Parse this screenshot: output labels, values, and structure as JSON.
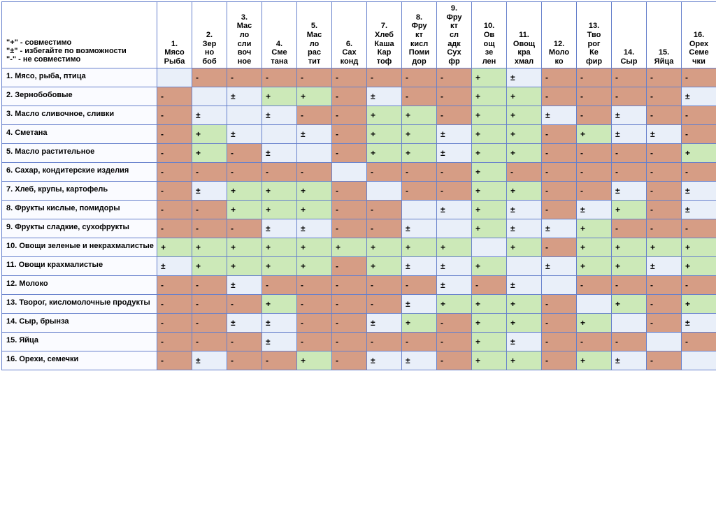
{
  "legend": {
    "plus": "\"+\" - совместимо",
    "pm": "\"±\" - избегайте по возможности",
    "minus": "\"-\" - не совместимо"
  },
  "colors": {
    "plus": "#cce9b8",
    "minus": "#d69d85",
    "pm": "#e9eff9",
    "diag": "#e9eff9",
    "border": "#6680cc",
    "textMinus": "#333333",
    "textPlus": "#333333",
    "textPm": "#333333"
  },
  "symbols": {
    "plus": "+",
    "minus": "-",
    "pm": "±",
    "diag": ""
  },
  "columns": [
    "1.\nМясо\nРыба",
    "2.\nЗер\nно\nбоб",
    "3.\nМас\nло\nсли\nвоч\nное",
    "4.\nСме\nтана",
    "5.\nМас\nло\nрас\nтит",
    "6.\nСах\nконд",
    "7.\nХлеб\nКаша\nКар\nтоф",
    "8.\nФру\nкт\nкисл\nПоми\nдор",
    "9.\nФру\nкт\nсл\nадк\nСух\nфр",
    "10.\nОв\nощ\nзе\nлен",
    "11.\nОвощ\nкра\nхмал",
    "12.\nМоло\nко",
    "13.\nТво\nрог\nКе\nфир",
    "14.\nСыр",
    "15.\nЯйца",
    "16.\nОрех\nСеме\nчки"
  ],
  "rows": [
    {
      "label": "1. Мясо, рыба, птица",
      "c": [
        "d",
        "-",
        "-",
        "-",
        "-",
        "-",
        "-",
        "-",
        "-",
        "+",
        "±",
        "-",
        "-",
        "-",
        "-",
        "-"
      ]
    },
    {
      "label": "2. Зернобобовые",
      "c": [
        "-",
        "d",
        "±",
        "+",
        "+",
        "-",
        "±",
        "-",
        "-",
        "+",
        "+",
        "-",
        "-",
        "-",
        "-",
        "±"
      ]
    },
    {
      "label": "3. Масло сливочное, сливки",
      "c": [
        "-",
        "±",
        "d",
        "±",
        "-",
        "-",
        "+",
        "+",
        "-",
        "+",
        "+",
        "±",
        "-",
        "±",
        "-",
        "-"
      ]
    },
    {
      "label": "4. Сметана",
      "c": [
        "-",
        "+",
        "±",
        "d",
        "±",
        "-",
        "+",
        "+",
        "±",
        "+",
        "+",
        "-",
        "+",
        "±",
        "±",
        "-"
      ]
    },
    {
      "label": "5. Масло растительное",
      "c": [
        "-",
        "+",
        "-",
        "±",
        "d",
        "-",
        "+",
        "+",
        "±",
        "+",
        "+",
        "-",
        "-",
        "-",
        "-",
        "+"
      ]
    },
    {
      "label": "6. Сахар, кондитерские изделия",
      "c": [
        "-",
        "-",
        "-",
        "-",
        "-",
        "d",
        "-",
        "-",
        "-",
        "+",
        "-",
        "-",
        "-",
        "-",
        "-",
        "-"
      ]
    },
    {
      "label": "7. Хлеб, крупы, картофель",
      "c": [
        "-",
        "±",
        "+",
        "+",
        "+",
        "-",
        "d",
        "-",
        "-",
        "+",
        "+",
        "-",
        "-",
        "±",
        "-",
        "±"
      ]
    },
    {
      "label": "8. Фрукты кислые, помидоры",
      "c": [
        "-",
        "-",
        "+",
        "+",
        "+",
        "-",
        "-",
        "d",
        "±",
        "+",
        "±",
        "-",
        "±",
        "+",
        "-",
        "±"
      ]
    },
    {
      "label": "9. Фрукты сладкие, сухофрукты",
      "c": [
        "-",
        "-",
        "-",
        "±",
        "±",
        "-",
        "-",
        "±",
        "d",
        "+",
        "±",
        "±",
        "+",
        "-",
        "-",
        "-"
      ]
    },
    {
      "label": "10. Овощи зеленые и некрахмалистые",
      "c": [
        "+",
        "+",
        "+",
        "+",
        "+",
        "+",
        "+",
        "+",
        "+",
        "d",
        "+",
        "-",
        "+",
        "+",
        "+",
        "+"
      ]
    },
    {
      "label": "11. Овощи крахмалистые",
      "c": [
        "±",
        "+",
        "+",
        "+",
        "+",
        "-",
        "+",
        "±",
        "±",
        "+",
        "d",
        "±",
        "+",
        "+",
        "±",
        "+"
      ]
    },
    {
      "label": "12. Молоко",
      "c": [
        "-",
        "-",
        "±",
        "-",
        "-",
        "-",
        "-",
        "-",
        "±",
        "-",
        "±",
        "d",
        "-",
        "-",
        "-",
        "-"
      ]
    },
    {
      "label": "13. Творог, кисломолочные продукты",
      "c": [
        "-",
        "-",
        "-",
        "+",
        "-",
        "-",
        "-",
        "±",
        "+",
        "+",
        "+",
        "-",
        "d",
        "+",
        "-",
        "+"
      ]
    },
    {
      "label": "14. Сыр, брынза",
      "c": [
        "-",
        "-",
        "±",
        "±",
        "-",
        "-",
        "±",
        "+",
        "-",
        "+",
        "+",
        "-",
        "+",
        "d",
        "-",
        "±"
      ]
    },
    {
      "label": "15. Яйца",
      "c": [
        "-",
        "-",
        "-",
        "±",
        "-",
        "-",
        "-",
        "-",
        "-",
        "+",
        "±",
        "-",
        "-",
        "-",
        "d",
        "-"
      ]
    },
    {
      "label": "16. Орехи, семечки",
      "c": [
        "-",
        "±",
        "-",
        "-",
        "+",
        "-",
        "±",
        "±",
        "-",
        "+",
        "+",
        "-",
        "+",
        "±",
        "-",
        "d"
      ]
    }
  ]
}
